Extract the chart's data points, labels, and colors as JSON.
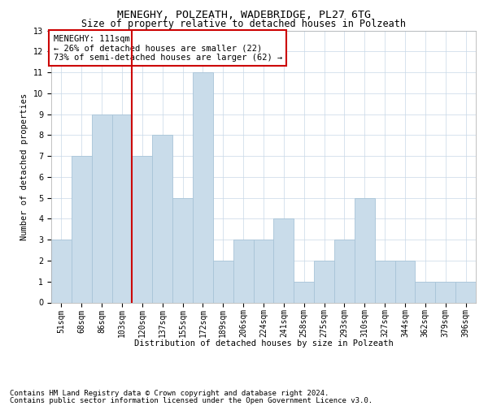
{
  "title": "MENEGHY, POLZEATH, WADEBRIDGE, PL27 6TG",
  "subtitle": "Size of property relative to detached houses in Polzeath",
  "xlabel": "Distribution of detached houses by size in Polzeath",
  "ylabel": "Number of detached properties",
  "categories": [
    "51sqm",
    "68sqm",
    "86sqm",
    "103sqm",
    "120sqm",
    "137sqm",
    "155sqm",
    "172sqm",
    "189sqm",
    "206sqm",
    "224sqm",
    "241sqm",
    "258sqm",
    "275sqm",
    "293sqm",
    "310sqm",
    "327sqm",
    "344sqm",
    "362sqm",
    "379sqm",
    "396sqm"
  ],
  "values": [
    3,
    7,
    9,
    9,
    7,
    8,
    5,
    11,
    2,
    3,
    3,
    4,
    1,
    2,
    3,
    5,
    2,
    2,
    1,
    1,
    1
  ],
  "bar_color": "#c9dcea",
  "bar_edgecolor": "#a8c4d8",
  "vline_x": 3.5,
  "vline_color": "#cc0000",
  "ylim": [
    0,
    13
  ],
  "yticks": [
    0,
    1,
    2,
    3,
    4,
    5,
    6,
    7,
    8,
    9,
    10,
    11,
    12,
    13
  ],
  "annotation_title": "MENEGHY: 111sqm",
  "annotation_line1": "← 26% of detached houses are smaller (22)",
  "annotation_line2": "73% of semi-detached houses are larger (62) →",
  "footer1": "Contains HM Land Registry data © Crown copyright and database right 2024.",
  "footer2": "Contains public sector information licensed under the Open Government Licence v3.0.",
  "title_fontsize": 9.5,
  "subtitle_fontsize": 8.5,
  "axis_label_fontsize": 7.5,
  "ylabel_fontsize": 7.5,
  "tick_fontsize": 7,
  "annotation_fontsize": 7.5,
  "footer_fontsize": 6.5,
  "background_color": "#ffffff",
  "grid_color": "#c8d8e8"
}
